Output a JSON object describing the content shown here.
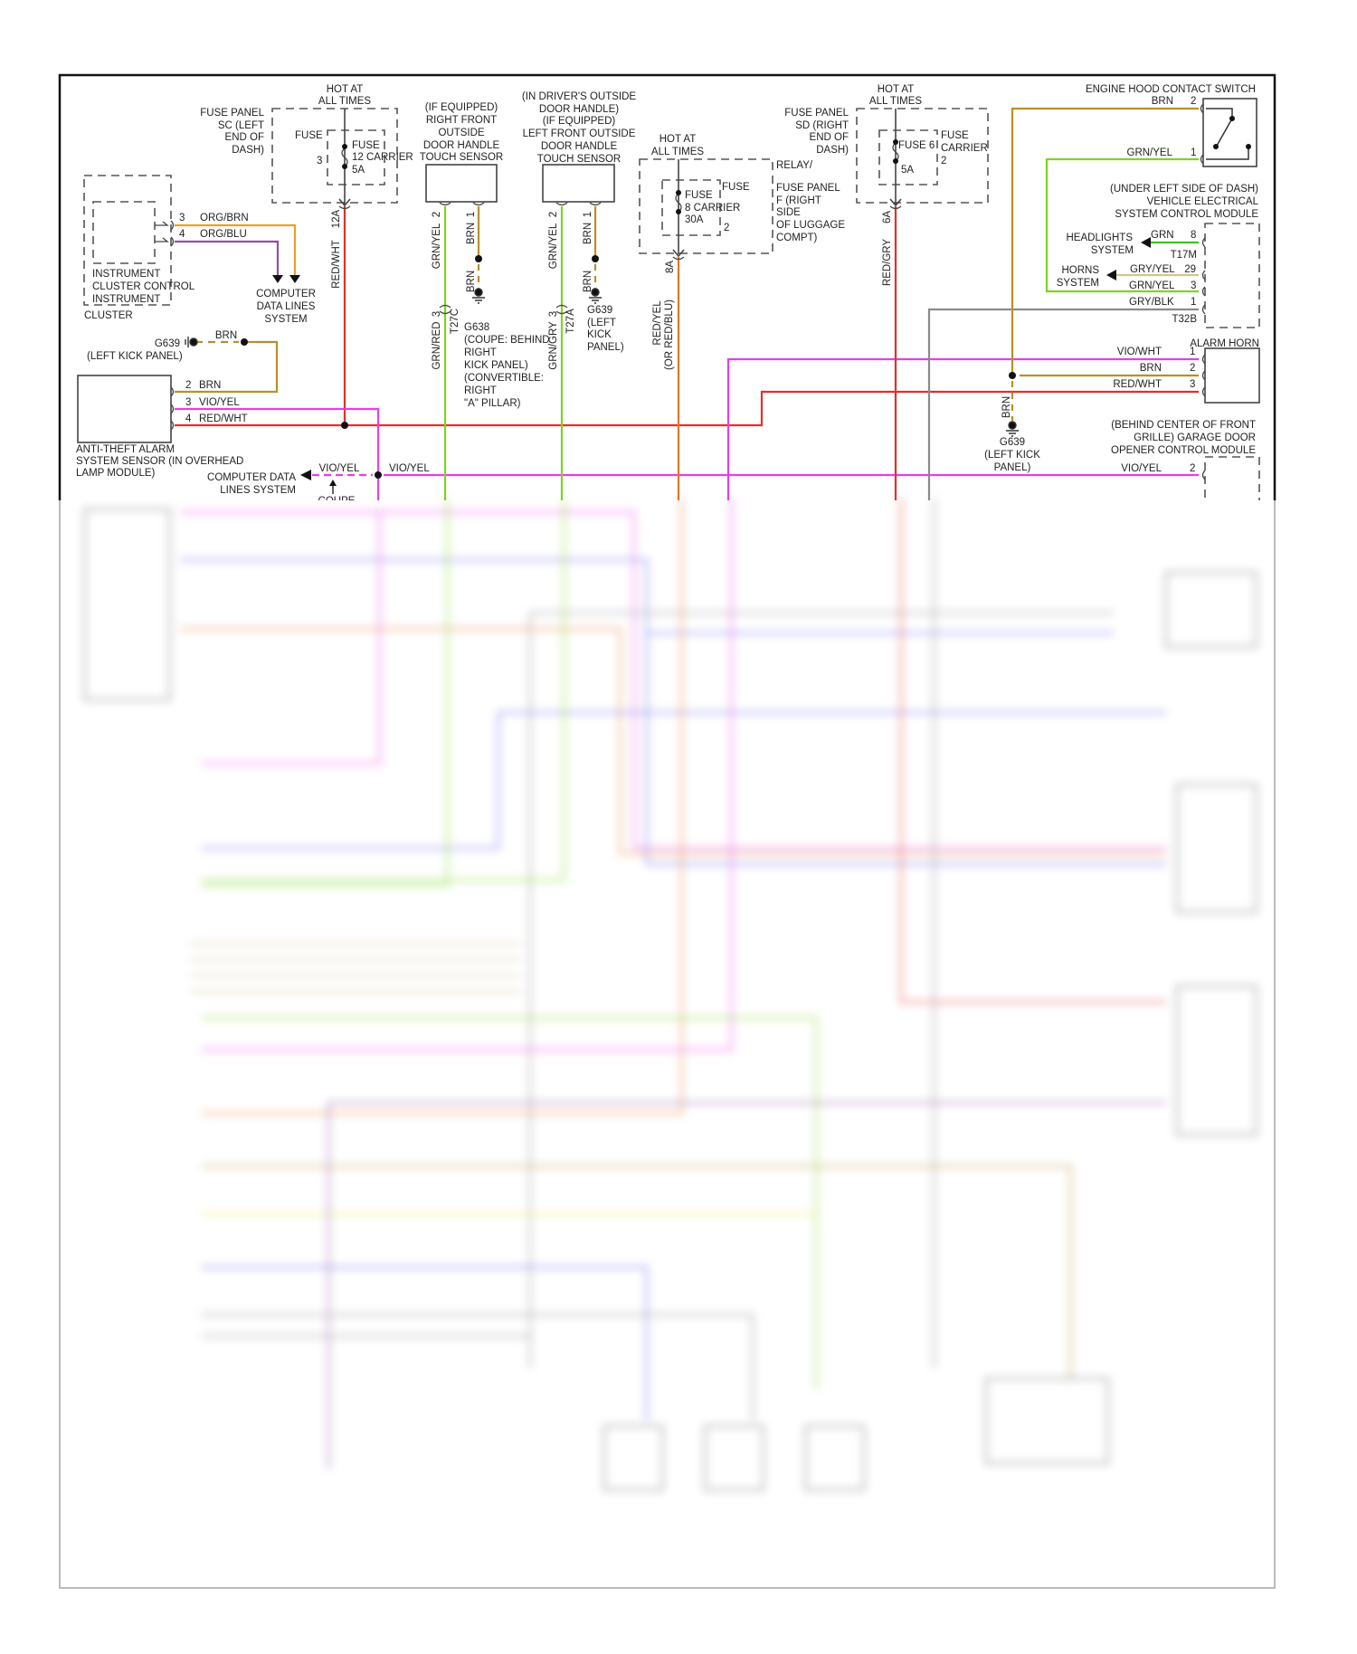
{
  "wire_colors": {
    "red": "#e0302a",
    "orange": "#e8732a",
    "brown": "#b8902a",
    "green": "#7ed321",
    "magenta": "#e83ee8",
    "gray": "#8a8a8a",
    "violet": "#8e4fa3",
    "gray_yellow": "#c9c98a"
  },
  "fuse_panel_sc": {
    "hot": [
      "HOT AT",
      "ALL TIMES"
    ],
    "location": [
      "FUSE PANEL",
      "SC (LEFT",
      "END OF",
      "DASH)"
    ],
    "fuse_label": "FUSE",
    "pin": "3",
    "carrier": [
      "FUSE",
      "12 CARRIER",
      "5A"
    ],
    "out_pin": "12A",
    "wire": "RED/WHT"
  },
  "instrument_cluster": {
    "name": [
      "INSTRUMENT",
      "CLUSTER CONTROL",
      "INSTRUMENT"
    ],
    "outer": "CLUSTER",
    "pins": [
      {
        "num": "3",
        "wire": "ORG/BRN"
      },
      {
        "num": "4",
        "wire": "ORG/BLU"
      }
    ]
  },
  "computer_data_lines_1": [
    "COMPUTER",
    "DATA LINES",
    "SYSTEM"
  ],
  "ground_g639_left": {
    "id": "G639",
    "location": "(LEFT KICK PANEL)",
    "wire": "BRN"
  },
  "anti_theft": {
    "name": [
      "ANTI-THEFT ALARM",
      "SYSTEM SENSOR (IN OVERHEAD",
      "LAMP MODULE)"
    ],
    "pins": [
      {
        "num": "2",
        "wire": "BRN"
      },
      {
        "num": "3",
        "wire": "VIO/YEL"
      },
      {
        "num": "4",
        "wire": "RED/WHT"
      }
    ]
  },
  "computer_data_lines_2": {
    "name": [
      "COMPUTER DATA",
      "LINES SYSTEM"
    ],
    "wire_left": "VIO/YEL",
    "wire_right": "VIO/YEL",
    "note": "COUPE"
  },
  "rf_touch": {
    "name": [
      "(IF EQUIPPED)",
      "RIGHT FRONT",
      "OUTSIDE",
      "DOOR HANDLE",
      "TOUCH SENSOR"
    ],
    "pin2": "2",
    "pin2_wire": "GRN/YEL",
    "pin1": "1",
    "pin1_wire": "BRN",
    "ground_wire": "BRN",
    "conn_pin": "3",
    "conn": "T27C",
    "conn_wire": "GRN/RED",
    "ground": [
      "G638",
      "(COUPE: BEHIND",
      "RIGHT",
      "KICK PANEL)",
      "(CONVERTIBLE:",
      "RIGHT",
      "\"A\" PILLAR)"
    ]
  },
  "lf_touch": {
    "name": [
      "(IN DRIVER'S OUTSIDE",
      "DOOR HANDLE)",
      "(IF EQUIPPED)",
      "LEFT FRONT OUTSIDE",
      "DOOR HANDLE",
      "TOUCH SENSOR"
    ],
    "pin2": "2",
    "pin2_wire": "GRN/YEL",
    "pin1": "1",
    "pin1_wire": "BRN",
    "ground_wire": "BRN",
    "conn_pin": "3",
    "conn": "T27A",
    "conn_wire": "GRN/GRY",
    "ground": [
      "G639",
      "(LEFT",
      "KICK",
      "PANEL)"
    ]
  },
  "relay_panel_f": {
    "hot": [
      "HOT AT",
      "ALL TIMES"
    ],
    "fuse_label": "FUSE",
    "carrier": [
      "FUSE",
      "8 CARRIER",
      "30A"
    ],
    "pin": "2",
    "location": [
      "RELAY/",
      "FUSE PANEL",
      "F (RIGHT",
      "SIDE",
      "OF LUGGAGE",
      "COMPT)"
    ],
    "out_pin": "8A",
    "wire": [
      "RED/YEL",
      "(OR RED/BLU)"
    ]
  },
  "fuse_panel_sd": {
    "hot": [
      "HOT AT",
      "ALL TIMES"
    ],
    "location": [
      "FUSE PANEL",
      "SD (RIGHT",
      "END OF",
      "DASH)"
    ],
    "fuse_label": [
      "FUSE",
      "CARRIER"
    ],
    "fuse": "FUSE 6",
    "amp": "5A",
    "pin": "2",
    "out_pin": "6A",
    "wire": "RED/GRY"
  },
  "hood_switch": {
    "name": "ENGINE HOOD CONTACT SWITCH",
    "pins": [
      {
        "num": "2",
        "wire": "BRN"
      },
      {
        "num": "1",
        "wire": "GRN/YEL"
      }
    ]
  },
  "vescm": {
    "name": [
      "(UNDER LEFT SIDE OF DASH)",
      "VEHICLE ELECTRICAL",
      "SYSTEM CONTROL MODULE"
    ],
    "headlights": [
      "HEADLIGHTS",
      "SYSTEM"
    ],
    "horns": [
      "HORNS",
      "SYSTEM"
    ],
    "pins": [
      {
        "num": "8",
        "wire": "GRN"
      },
      {
        "num": "29",
        "wire": "GRY/YEL"
      },
      {
        "num": "3",
        "wire": "GRN/YEL"
      },
      {
        "num": "1",
        "wire": "GRY/BLK"
      }
    ],
    "conn1": "T17M",
    "conn2": "T32B"
  },
  "alarm_horn": {
    "name": "ALARM HORN",
    "pins": [
      {
        "num": "1",
        "wire": "VIO/WHT"
      },
      {
        "num": "2",
        "wire": "BRN"
      },
      {
        "num": "3",
        "wire": "RED/WHT"
      }
    ]
  },
  "ground_g639_right": {
    "wire": "BRN",
    "id": "G639",
    "location": [
      "(LEFT KICK",
      "PANEL)"
    ]
  },
  "garage": {
    "name": [
      "(BEHIND CENTER OF FRONT",
      "GRILLE) GARAGE DOOR",
      "OPENER CONTROL MODULE"
    ],
    "pin": "2",
    "wire": "VIO/YEL"
  }
}
